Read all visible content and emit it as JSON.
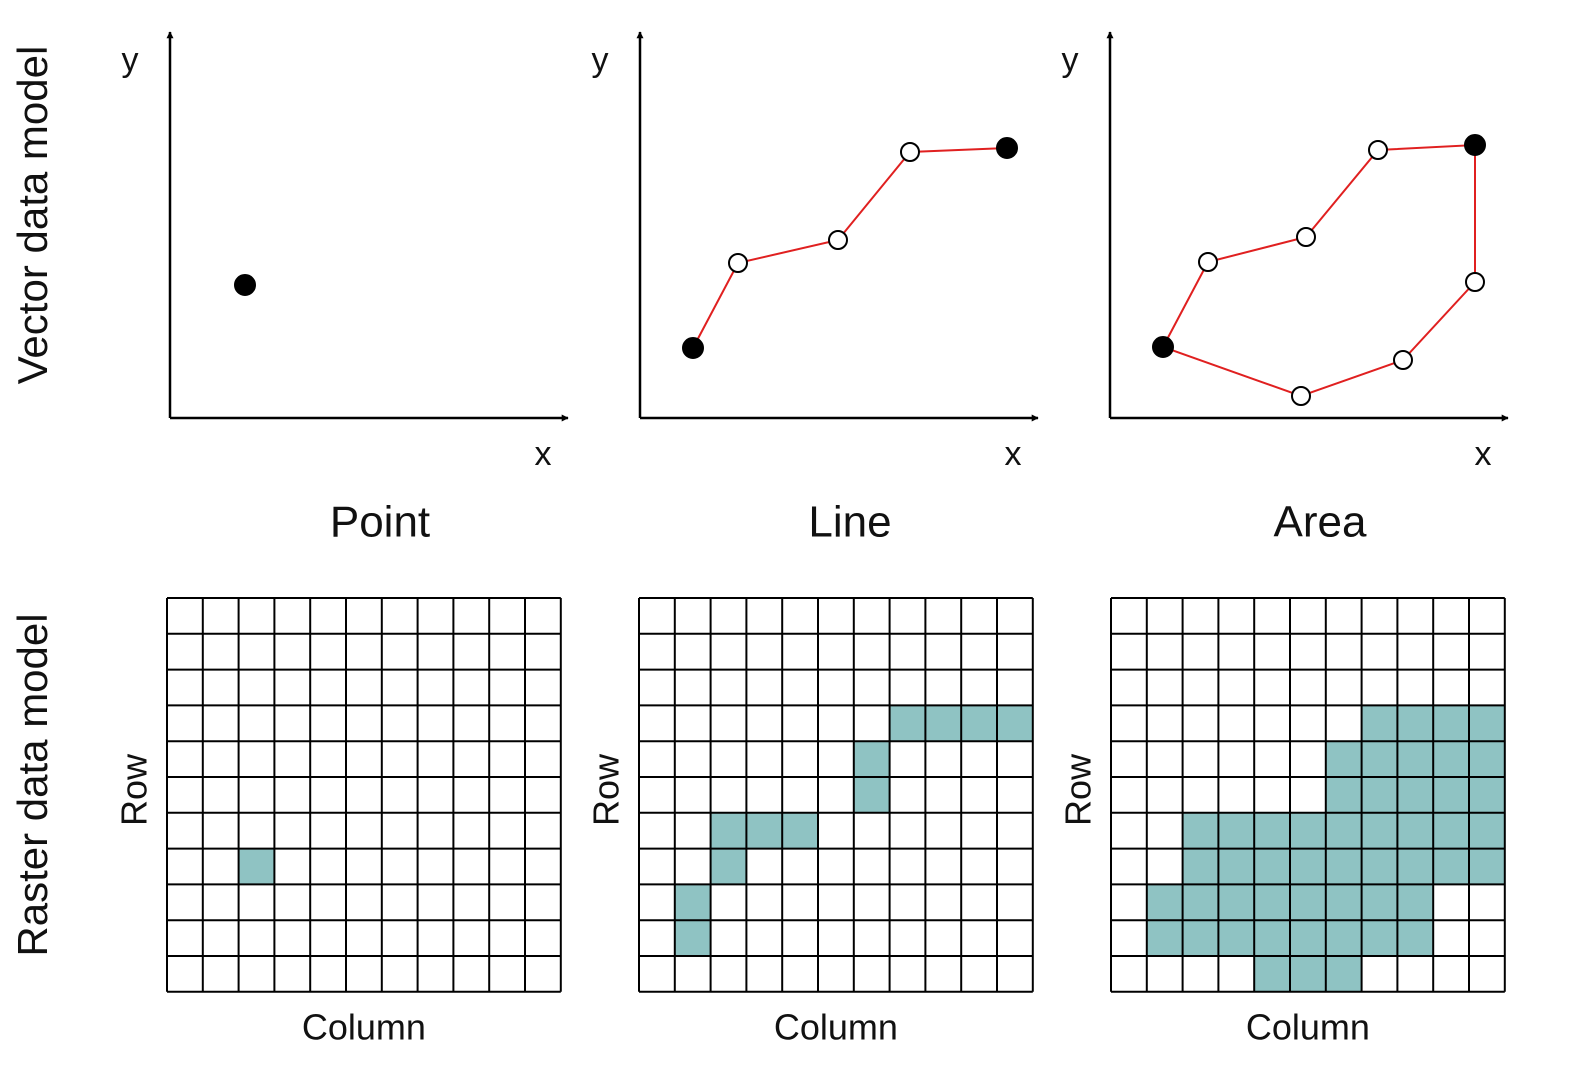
{
  "row_labels": {
    "vector": "Vector data model",
    "raster": "Raster data model"
  },
  "panels": [
    {
      "title": "Point",
      "y_axis": "y",
      "x_axis": "x",
      "row_axis": "Row",
      "column_axis": "Column"
    },
    {
      "title": "Line",
      "y_axis": "y",
      "x_axis": "x",
      "row_axis": "Row",
      "column_axis": "Column"
    },
    {
      "title": "Area",
      "y_axis": "y",
      "x_axis": "x",
      "row_axis": "Row",
      "column_axis": "Column"
    }
  ]
}
